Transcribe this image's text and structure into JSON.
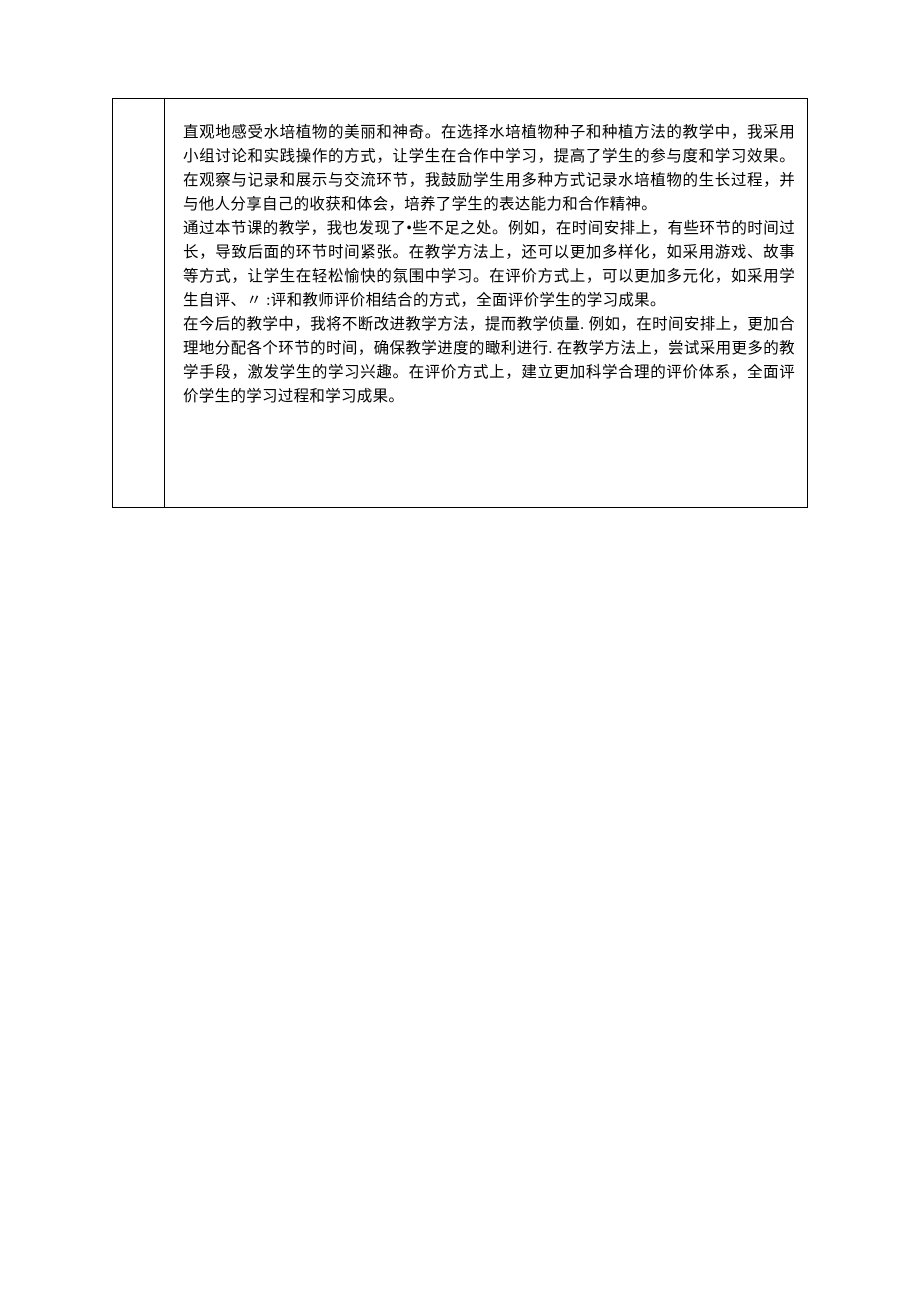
{
  "document": {
    "background_color": "#ffffff",
    "text_color": "#000000",
    "border_color": "#000000",
    "font_family": "SimSun",
    "font_size": 15.5,
    "line_height": 24,
    "paragraphs": [
      "直观地感受水培植物的美丽和神奇。在选择水培植物种子和种植方法的教学中，我采用小组讨论和实践操作的方式，让学生在合作中学习，提高了学生的参与度和学习效果。在观察与记录和展示与交流环节，我鼓励学生用多种方式记录水培植物的生长过程，并与他人分享自己的收获和体会，培养了学生的表达能力和合作精神。",
      "通过本节课的教学，我也发现了•些不足之处。例如，在时间安排上，有些环节的时间过长，导致后面的环节时间紧张。在教学方法上，还可以更加多样化，如采用游戏、故事等方式，让学生在轻松愉快的氛围中学习。在评价方式上，可以更加多元化，如采用学生自评、〃 :评和教师评价相结合的方式，全面评价学生的学习成果。",
      "在今后的教学中，我将不断改进教学方法，提而教学侦量. 例如，在时间安排上，更加合理地分配各个环节的时间，确保教学进度的瞰利进行. 在教学方法上，尝试采用更多的教学手段，激发学生的学习兴趣。在评价方式上，建立更加科学合理的评价体系，全面评价学生的学习过程和学习成果。"
    ]
  }
}
